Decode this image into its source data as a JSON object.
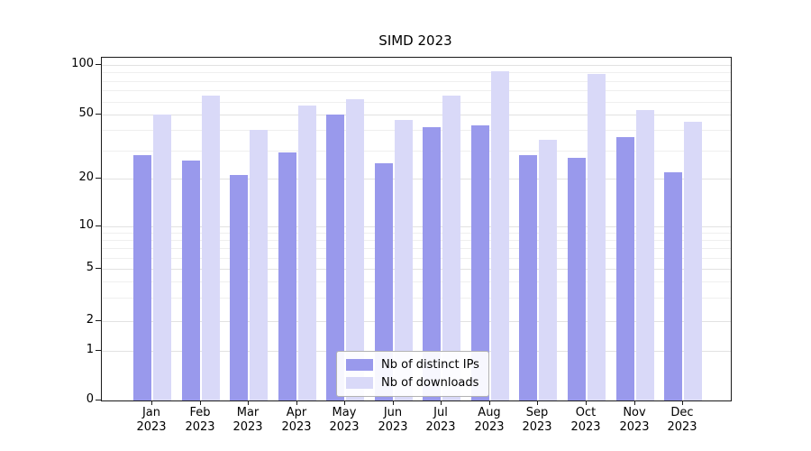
{
  "chart_data": {
    "type": "bar",
    "title": "SIMD 2023",
    "scale": "symlog",
    "categories": [
      "Jan 2023",
      "Feb 2023",
      "Mar 2023",
      "Apr 2023",
      "May 2023",
      "Jun 2023",
      "Jul 2023",
      "Aug 2023",
      "Sep 2023",
      "Oct 2023",
      "Nov 2023",
      "Dec 2023"
    ],
    "series": [
      {
        "name": "Nb of distinct IPs",
        "color": "#9999ec",
        "values": [
          28,
          26,
          21,
          29,
          50,
          25,
          42,
          43,
          28,
          27,
          36,
          22
        ]
      },
      {
        "name": "Nb of downloads",
        "color": "#d9d9f8",
        "values": [
          50,
          65,
          40,
          57,
          62,
          46,
          65,
          92,
          35,
          88,
          53,
          45
        ]
      }
    ],
    "yticks": [
      0,
      1,
      2,
      5,
      10,
      20,
      50,
      100
    ],
    "ylim": [
      0,
      110
    ],
    "xlabel": "",
    "ylabel": "",
    "grid": "horizontal",
    "legend_position": "lower center"
  }
}
